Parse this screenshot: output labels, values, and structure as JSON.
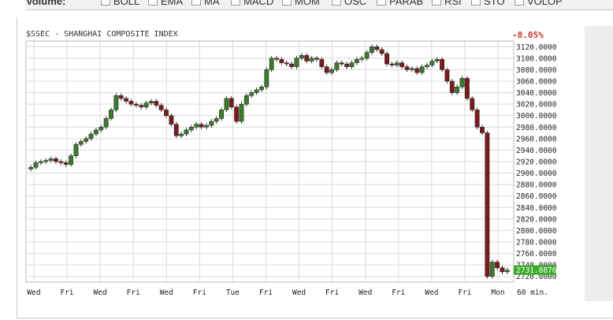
{
  "indicators": [
    {
      "label": "Volume:",
      "checkbox": false
    },
    {
      "label": "BOLL",
      "checkbox": true
    },
    {
      "label": "EMA",
      "checkbox": true
    },
    {
      "label": "MA",
      "checkbox": true
    },
    {
      "label": "MACD",
      "checkbox": true
    },
    {
      "label": "MOM",
      "checkbox": true
    },
    {
      "label": "OSC",
      "checkbox": true
    },
    {
      "label": "PARAB",
      "checkbox": true
    },
    {
      "label": "RSI",
      "checkbox": true
    },
    {
      "label": "STO",
      "checkbox": true
    },
    {
      "label": "VOLOP",
      "checkbox": true
    }
  ],
  "colors": {
    "up": "#3a7a2a",
    "down": "#7a1c1c",
    "last_price_bg": "#3aaa2a",
    "change": "#cc3333",
    "grid": "#d9d9d9"
  },
  "chart_data": {
    "type": "candlestick",
    "title": "$SSEC - SHANGHAI COMPOSITE INDEX",
    "change": "-8.05%",
    "interval_label": "60 min.",
    "last_price": "2731.0876",
    "ylim": [
      2710,
      3130
    ],
    "y_ticks": [
      "3120.0000",
      "3100.0000",
      "3080.0000",
      "3060.0000",
      "3040.0000",
      "3020.0000",
      "3000.0000",
      "2980.0000",
      "2960.0000",
      "2940.0000",
      "2920.0000",
      "2900.0000",
      "2880.0000",
      "2860.0000",
      "2840.0000",
      "2820.0000",
      "2800.0000",
      "2780.0000",
      "2760.0000",
      "2740.0000",
      "2720.0000"
    ],
    "x_labels": [
      "Wed",
      "Fri",
      "Wed",
      "Fri",
      "Wed",
      "Fri",
      "Tue",
      "Fri",
      "Wed",
      "Fri",
      "Wed",
      "Fri",
      "Wed",
      "Fri",
      "Mon"
    ],
    "close": [
      2910,
      2918,
      2920,
      2922,
      2925,
      2920,
      2918,
      2915,
      2930,
      2950,
      2955,
      2960,
      2968,
      2975,
      2980,
      2995,
      3010,
      3035,
      3030,
      3025,
      3020,
      3018,
      3015,
      3022,
      3025,
      3018,
      3010,
      3000,
      2985,
      2965,
      2968,
      2975,
      2980,
      2985,
      2980,
      2983,
      2990,
      2995,
      3010,
      3030,
      3015,
      2990,
      3020,
      3035,
      3040,
      3045,
      3050,
      3080,
      3100,
      3098,
      3092,
      3090,
      3085,
      3100,
      3105,
      3095,
      3100,
      3098,
      3085,
      3075,
      3080,
      3092,
      3090,
      3085,
      3092,
      3098,
      3100,
      3110,
      3120,
      3115,
      3108,
      3090,
      3088,
      3092,
      3085,
      3080,
      3082,
      3075,
      3085,
      3088,
      3095,
      3098,
      3080,
      3060,
      3040,
      3050,
      3065,
      3030,
      3010,
      2980,
      2970,
      2720,
      2745,
      2735,
      2728,
      2731
    ]
  }
}
